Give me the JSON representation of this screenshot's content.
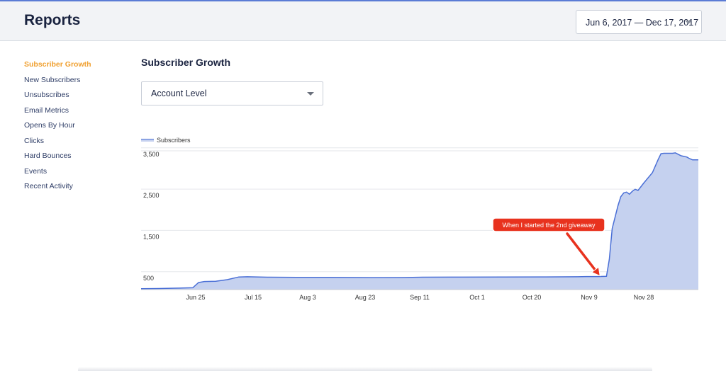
{
  "header": {
    "title": "Reports",
    "date_range": "Jun 6, 2017 — Dec 17, 2017"
  },
  "sidebar": {
    "items": [
      {
        "label": "Subscriber Growth",
        "active": true
      },
      {
        "label": "New Subscribers"
      },
      {
        "label": "Unsubscribes"
      },
      {
        "label": "Email Metrics"
      },
      {
        "label": "Opens By Hour"
      },
      {
        "label": "Clicks"
      },
      {
        "label": "Hard Bounces"
      },
      {
        "label": "Events"
      },
      {
        "label": "Recent Activity"
      }
    ]
  },
  "main": {
    "title": "Subscriber Growth",
    "level_select": "Account Level"
  },
  "colors": {
    "accent": "#f0a030",
    "line": "#4a6fd6",
    "fill": "#c5d1ef",
    "annotation": "#e8321e"
  },
  "chart_data": {
    "type": "area",
    "legend": [
      "Subscribers"
    ],
    "y_ticks": [
      "3,500",
      "2,500",
      "1,500",
      "500"
    ],
    "y_tick_values": [
      3500,
      2500,
      1500,
      500
    ],
    "x_ticks": [
      "Jun 25",
      "Jul 15",
      "Aug 3",
      "Aug 23",
      "Sep 11",
      "Oct 1",
      "Oct 20",
      "Nov 9",
      "Nov 28"
    ],
    "x_tick_dates": [
      "2017-06-25",
      "2017-07-15",
      "2017-08-03",
      "2017-08-23",
      "2017-09-11",
      "2017-10-01",
      "2017-10-20",
      "2017-11-09",
      "2017-11-28"
    ],
    "ylim": [
      170,
      3530
    ],
    "xlim": [
      "2017-06-06",
      "2017-12-17"
    ],
    "annotation": "When I started the 2nd giveaway",
    "series": [
      {
        "name": "Subscribers",
        "points": [
          [
            "2017-06-06",
            190
          ],
          [
            "2017-06-12",
            195
          ],
          [
            "2017-06-18",
            205
          ],
          [
            "2017-06-24",
            215
          ],
          [
            "2017-06-26",
            340
          ],
          [
            "2017-06-28",
            365
          ],
          [
            "2017-07-02",
            372
          ],
          [
            "2017-07-06",
            410
          ],
          [
            "2017-07-10",
            475
          ],
          [
            "2017-07-13",
            480
          ],
          [
            "2017-07-20",
            470
          ],
          [
            "2017-07-30",
            465
          ],
          [
            "2017-08-10",
            465
          ],
          [
            "2017-08-25",
            460
          ],
          [
            "2017-09-05",
            462
          ],
          [
            "2017-09-12",
            470
          ],
          [
            "2017-09-25",
            472
          ],
          [
            "2017-10-10",
            473
          ],
          [
            "2017-10-25",
            477
          ],
          [
            "2017-11-05",
            480
          ],
          [
            "2017-11-08",
            485
          ],
          [
            "2017-11-12",
            485
          ],
          [
            "2017-11-15",
            490
          ],
          [
            "2017-11-16",
            900
          ],
          [
            "2017-11-17",
            1650
          ],
          [
            "2017-11-19",
            2200
          ],
          [
            "2017-11-20",
            2420
          ],
          [
            "2017-11-21",
            2510
          ],
          [
            "2017-11-22",
            2530
          ],
          [
            "2017-11-23",
            2480
          ],
          [
            "2017-11-24",
            2550
          ],
          [
            "2017-11-25",
            2600
          ],
          [
            "2017-11-26",
            2570
          ],
          [
            "2017-11-28",
            2750
          ],
          [
            "2017-12-01",
            3000
          ],
          [
            "2017-12-03",
            3320
          ],
          [
            "2017-12-04",
            3460
          ],
          [
            "2017-12-05",
            3470
          ],
          [
            "2017-12-08",
            3470
          ],
          [
            "2017-12-09",
            3480
          ],
          [
            "2017-12-11",
            3410
          ],
          [
            "2017-12-13",
            3380
          ],
          [
            "2017-12-14",
            3340
          ],
          [
            "2017-12-15",
            3310
          ],
          [
            "2017-12-17",
            3310
          ]
        ]
      }
    ]
  }
}
